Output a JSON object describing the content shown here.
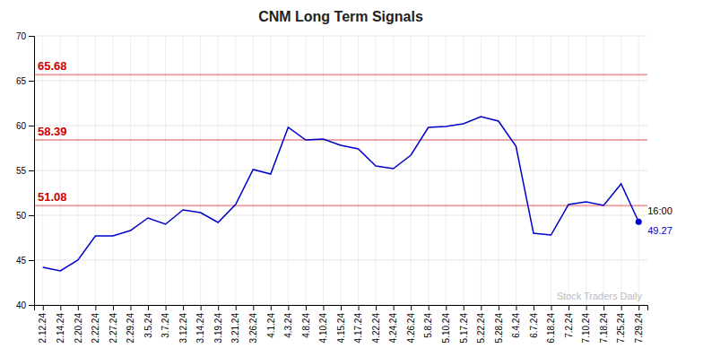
{
  "chart_data": {
    "type": "line",
    "title": "CNM Long Term Signals",
    "categories": [
      "2.12.24",
      "2.14.24",
      "2.20.24",
      "2.22.24",
      "2.27.24",
      "2.29.24",
      "3.5.24",
      "3.7.24",
      "3.12.24",
      "3.14.24",
      "3.19.24",
      "3.21.24",
      "3.26.24",
      "4.1.24",
      "4.3.24",
      "4.8.24",
      "4.10.24",
      "4.15.24",
      "4.17.24",
      "4.22.24",
      "4.24.24",
      "4.26.24",
      "5.8.24",
      "5.10.24",
      "5.17.24",
      "5.22.24",
      "5.28.24",
      "6.4.24",
      "6.7.24",
      "6.18.24",
      "7.2.24",
      "7.10.24",
      "7.18.24",
      "7.25.24",
      "7.29.24"
    ],
    "values": [
      44.2,
      43.8,
      45.0,
      47.7,
      47.7,
      48.3,
      49.7,
      49.0,
      50.6,
      50.3,
      49.2,
      51.2,
      55.1,
      54.6,
      59.8,
      58.4,
      58.5,
      57.8,
      57.4,
      55.5,
      55.2,
      56.7,
      59.8,
      59.9,
      60.2,
      61.0,
      60.5,
      57.7,
      48.0,
      47.8,
      51.2,
      51.5,
      51.1,
      53.5,
      49.27
    ],
    "color": "#0000cc",
    "hlines": [
      {
        "value": 65.68,
        "color": "#cc0000"
      },
      {
        "value": 58.39,
        "color": "#cc0000"
      },
      {
        "value": 51.08,
        "color": "#cc0000"
      }
    ],
    "annotations": [
      "16:00",
      "Stock Traders Daily"
    ],
    "ylim": [
      40,
      70
    ],
    "yticks": [
      40,
      45,
      50,
      55,
      60,
      65,
      70
    ],
    "grid": true
  }
}
